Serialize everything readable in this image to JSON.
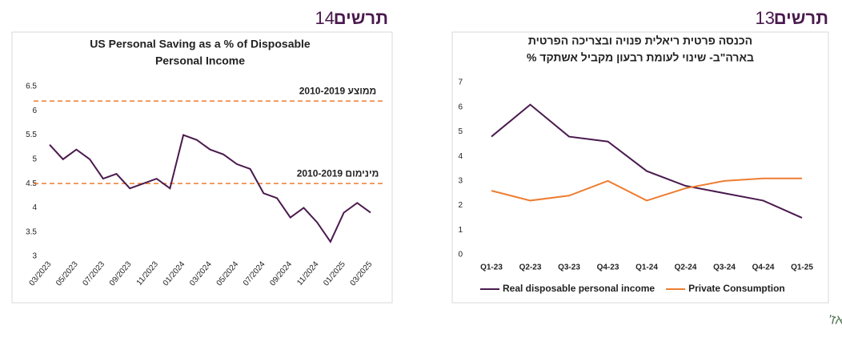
{
  "source": "מקור: Bloomberg, מיטב ברוקראז'",
  "chart_data": [
    {
      "type": "line",
      "figure_label": {
        "word": "תרשים",
        "number": "14"
      },
      "title": [
        "US Personal Saving as a % of Disposable",
        "Personal Income"
      ],
      "categories": [
        "03/2023",
        null,
        "05/2023",
        null,
        "07/2023",
        null,
        "09/2023",
        null,
        "11/2023",
        null,
        "01/2024",
        null,
        "03/2024",
        null,
        "05/2024",
        null,
        "07/2024",
        null,
        "09/2024",
        null,
        "11/2024",
        null,
        "01/2025",
        null,
        "03/2025"
      ],
      "series": [
        {
          "name": "US Personal Saving",
          "color": "#4a1a4e",
          "values": [
            5.3,
            5.0,
            5.2,
            5.0,
            4.6,
            4.7,
            4.4,
            4.5,
            4.6,
            4.4,
            5.5,
            5.4,
            5.2,
            5.1,
            4.9,
            4.8,
            4.3,
            4.2,
            3.8,
            4.0,
            3.7,
            3.3,
            3.9,
            4.1,
            3.9
          ]
        }
      ],
      "reference_lines": [
        {
          "value": 6.2,
          "label": "ממוצע 2010-2019",
          "color": "#ed7d31"
        },
        {
          "value": 4.5,
          "label": "מינימום 2010-2019",
          "color": "#ed7d31"
        }
      ],
      "ylim": [
        3,
        6.5
      ],
      "yticks": [
        3,
        3.5,
        4,
        4.5,
        5,
        5.5,
        6,
        6.5
      ],
      "grid": false
    },
    {
      "type": "line",
      "figure_label": {
        "word": "תרשים",
        "number": "13"
      },
      "title": [
        "הכנסה פרטית ריאלית פנויה  ובצריכה הפרטית",
        "בארה\"ב- שינוי לעומת רבעון מקביל אשתקד %"
      ],
      "categories": [
        "Q1-23",
        "Q2-23",
        "Q3-23",
        "Q4-23",
        "Q1-24",
        "Q2-24",
        "Q3-24",
        "Q4-24",
        "Q1-25"
      ],
      "series": [
        {
          "name": "Real disposable personal income",
          "color": "#4a1a4e",
          "values": [
            4.8,
            6.1,
            4.8,
            4.6,
            3.4,
            2.8,
            2.5,
            2.2,
            1.5
          ]
        },
        {
          "name": "Private Consumption",
          "color": "#ed7d31",
          "values": [
            2.6,
            2.2,
            2.4,
            3.0,
            2.2,
            2.7,
            3.0,
            3.1,
            3.1
          ]
        }
      ],
      "ylim": [
        0,
        7
      ],
      "yticks": [
        0,
        1,
        2,
        3,
        4,
        5,
        6,
        7
      ],
      "grid": false,
      "legend": "bottom"
    }
  ]
}
